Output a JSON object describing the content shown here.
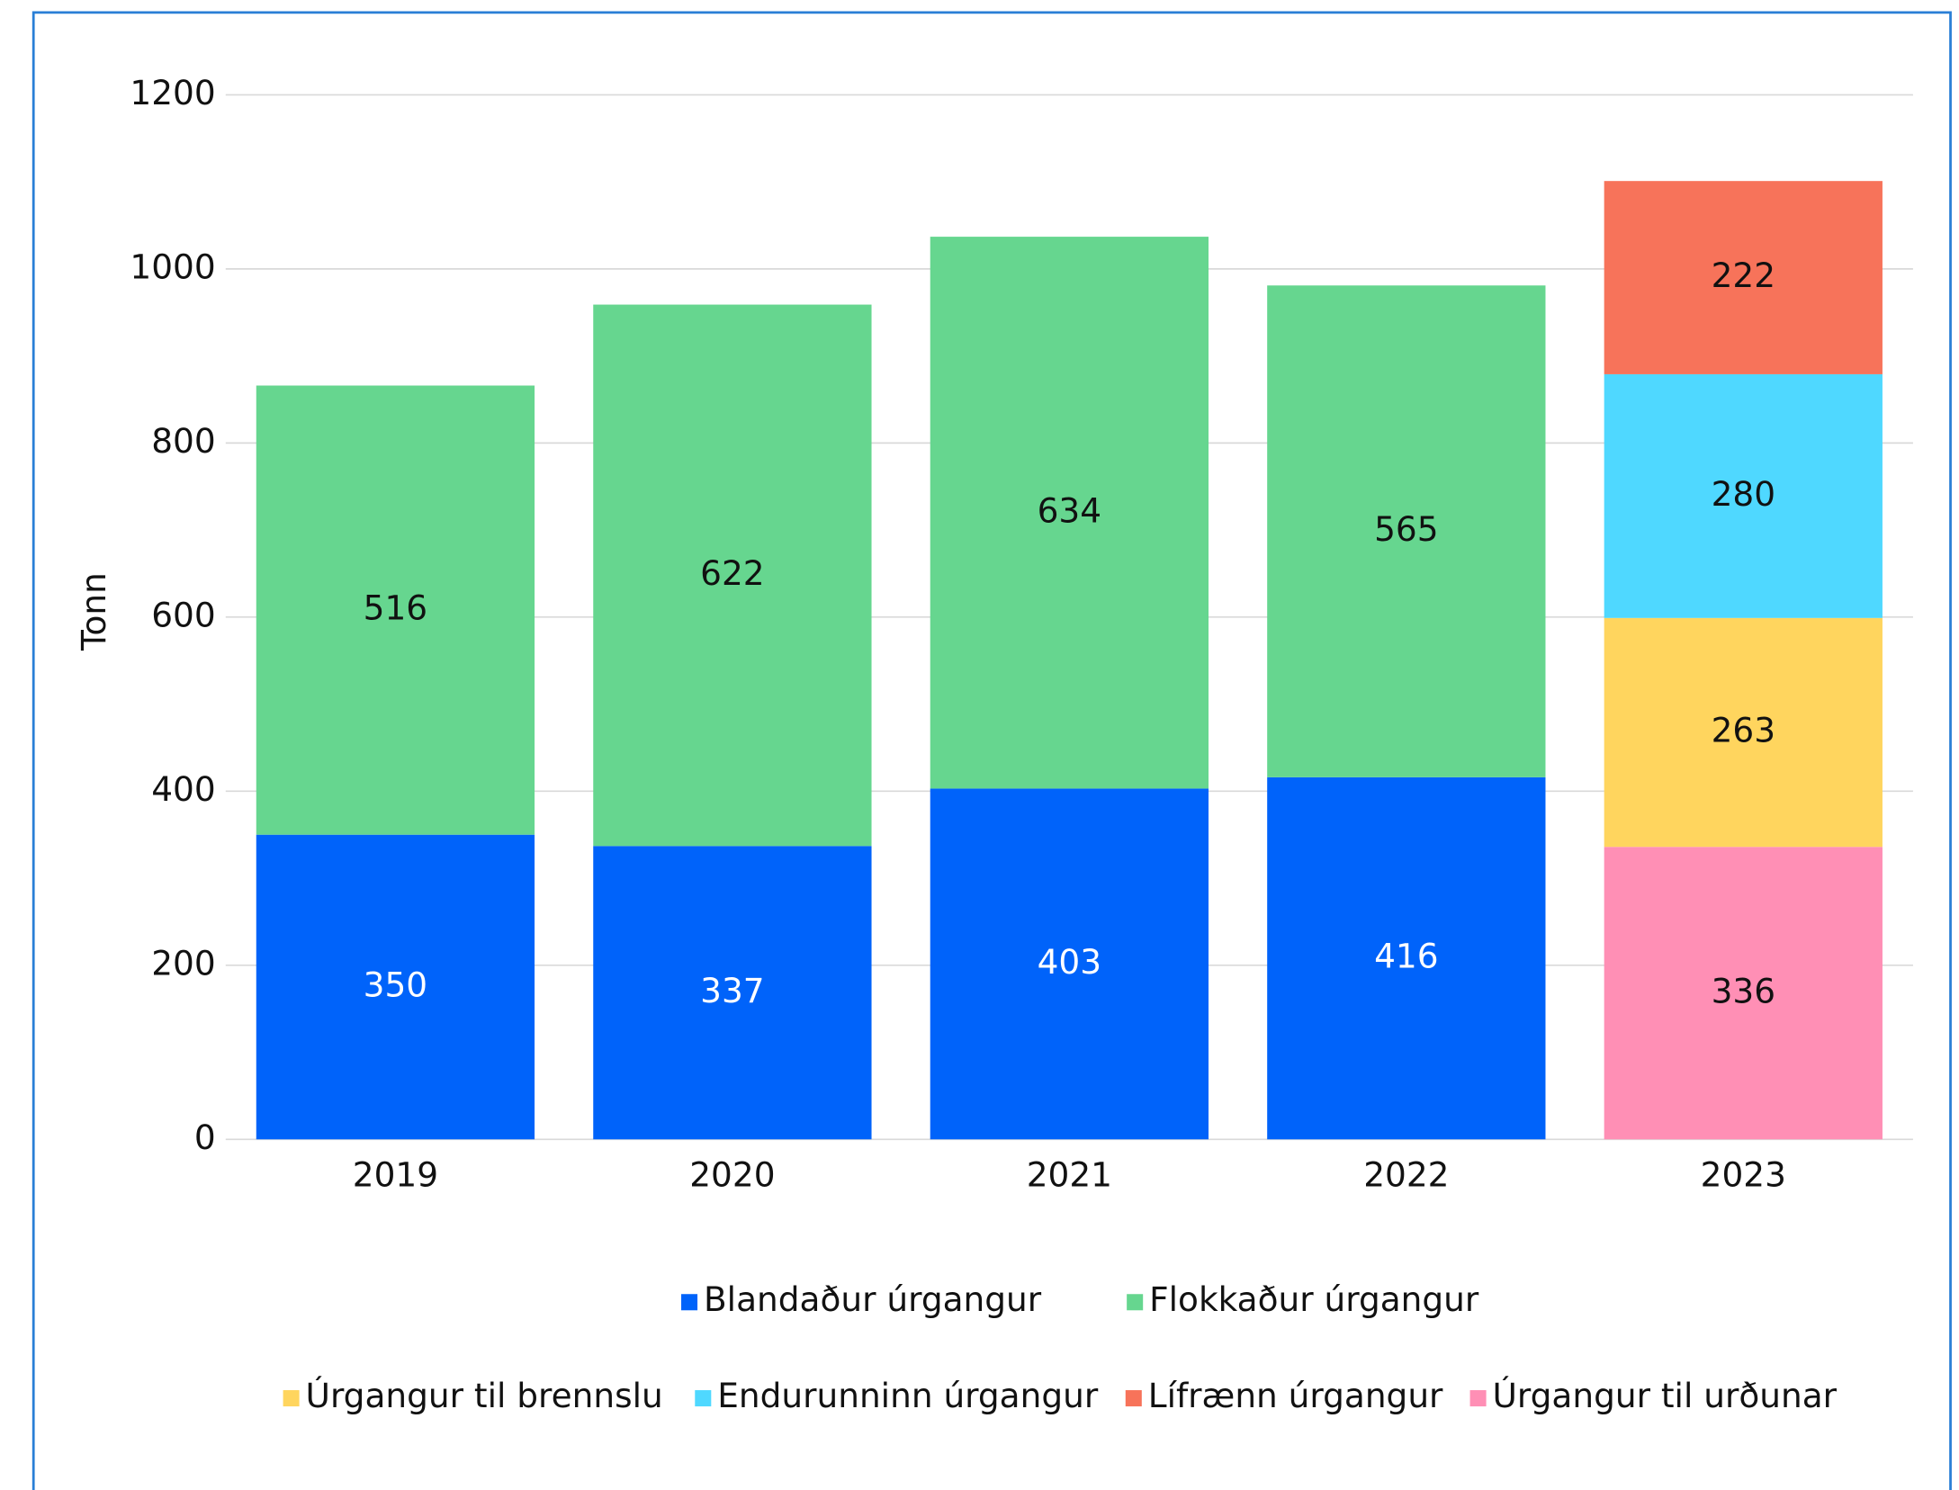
{
  "chart_data": {
    "type": "stacked_bar",
    "y_label": "Tonn",
    "categories": [
      "2019",
      "2020",
      "2021",
      "2022",
      "2023"
    ],
    "series": [
      {
        "name": "Blandaður úrgangur",
        "color": "#0063fa",
        "label_color": "#ffffff",
        "values": [
          350,
          337,
          403,
          416,
          null
        ]
      },
      {
        "name": "Flokkaður úrgangur",
        "color": "#66d68f",
        "label_color": "#111111",
        "values": [
          516,
          622,
          634,
          565,
          null
        ]
      },
      {
        "name": "Úrgangur til urðunar",
        "color": "#ff8fb5",
        "label_color": "#111111",
        "values": [
          null,
          null,
          null,
          null,
          336
        ]
      },
      {
        "name": "Úrgangur til brennslu",
        "color": "#ffd55e",
        "label_color": "#111111",
        "values": [
          null,
          null,
          null,
          null,
          263
        ]
      },
      {
        "name": "Endurunninn úrgangur",
        "color": "#4fd8ff",
        "label_color": "#111111",
        "values": [
          null,
          null,
          null,
          null,
          280
        ]
      },
      {
        "name": "Lífrænn úrgangur",
        "color": "#f7735a",
        "label_color": "#111111",
        "values": [
          null,
          null,
          null,
          null,
          222
        ]
      }
    ],
    "ylim": [
      0,
      1200
    ],
    "yticks": [
      0,
      200,
      400,
      600,
      800,
      1000,
      1200
    ],
    "grid": true
  }
}
